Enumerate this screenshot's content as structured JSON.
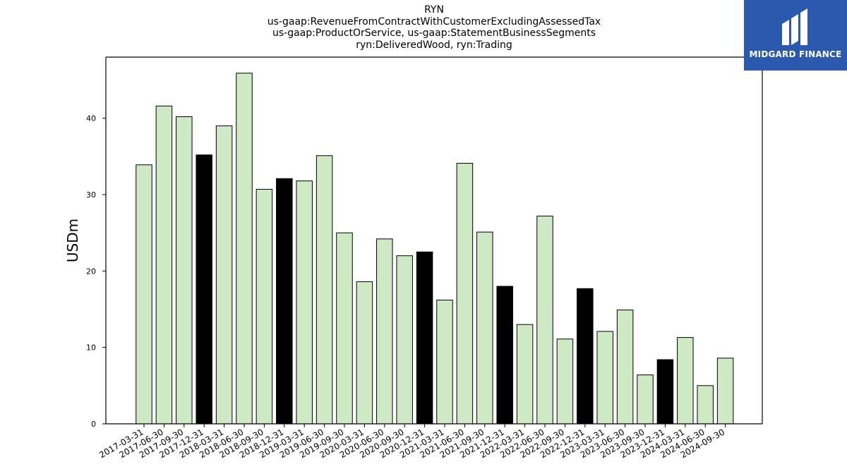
{
  "chart_data": {
    "type": "bar",
    "title_lines": [
      "RYN",
      "us-gaap:RevenueFromContractWithCustomerExcludingAssessedTax",
      "us-gaap:ProductOrService, us-gaap:StatementBusinessSegments",
      "ryn:DeliveredWood, ryn:Trading"
    ],
    "xlabel": "",
    "ylabel": "USDm",
    "ylim": [
      0,
      48
    ],
    "yticks": [
      0,
      10,
      20,
      30,
      40
    ],
    "grid": false,
    "categories": [
      "2017-03-31",
      "2017-06-30",
      "2017-09-30",
      "2017-12-31",
      "2018-03-31",
      "2018-06-30",
      "2018-09-30",
      "2018-12-31",
      "2019-03-31",
      "2019-06-30",
      "2019-09-30",
      "2020-03-31",
      "2020-06-30",
      "2020-09-30",
      "2020-12-31",
      "2021-03-31",
      "2021-06-30",
      "2021-09-30",
      "2021-12-31",
      "2022-03-31",
      "2022-06-30",
      "2022-09-30",
      "2022-12-31",
      "2023-03-31",
      "2023-06-30",
      "2023-09-30",
      "2023-12-31",
      "2024-03-31",
      "2024-06-30",
      "2024-09-30"
    ],
    "values": [
      33.9,
      41.6,
      40.2,
      35.2,
      39.0,
      45.9,
      30.7,
      32.1,
      31.8,
      35.1,
      25.0,
      18.6,
      24.2,
      22.0,
      22.5,
      16.2,
      34.1,
      25.1,
      18.0,
      13.0,
      27.2,
      11.1,
      17.7,
      12.1,
      14.9,
      6.4,
      8.4,
      11.3,
      5.0,
      8.6
    ],
    "highlight": [
      false,
      false,
      false,
      true,
      false,
      false,
      false,
      true,
      false,
      false,
      false,
      false,
      false,
      false,
      true,
      false,
      false,
      false,
      true,
      false,
      false,
      false,
      true,
      false,
      false,
      false,
      true,
      false,
      false,
      false
    ],
    "colors": {
      "bar": "#cdeac5",
      "highlight": "#000000",
      "edge": "#000000"
    }
  },
  "logo": {
    "text": "MIDGARD FINANCE",
    "background": "#2b59ad"
  }
}
